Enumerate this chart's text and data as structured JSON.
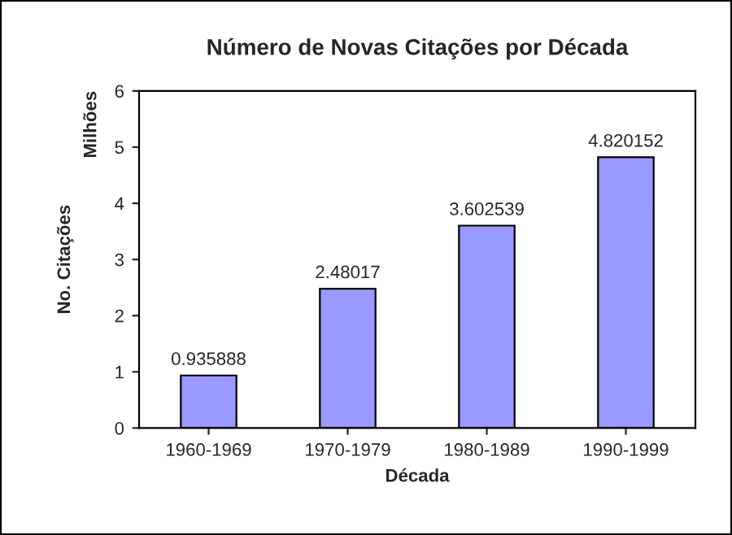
{
  "chart_data": {
    "type": "bar",
    "title": "Número de Novas Citações por Década",
    "xlabel": "Década",
    "ylabel": "No. Citações",
    "annotations": [
      "Milhões"
    ],
    "categories": [
      "1960-1969",
      "1970-1979",
      "1980-1989",
      "1990-1999"
    ],
    "values": [
      0.935888,
      2.48017,
      3.602539,
      4.820152
    ],
    "color": "#9999ff",
    "ylim": [
      0,
      6
    ],
    "yticks": [
      0,
      1,
      2,
      3,
      4,
      5,
      6
    ],
    "grid": false,
    "data_labels": true
  }
}
